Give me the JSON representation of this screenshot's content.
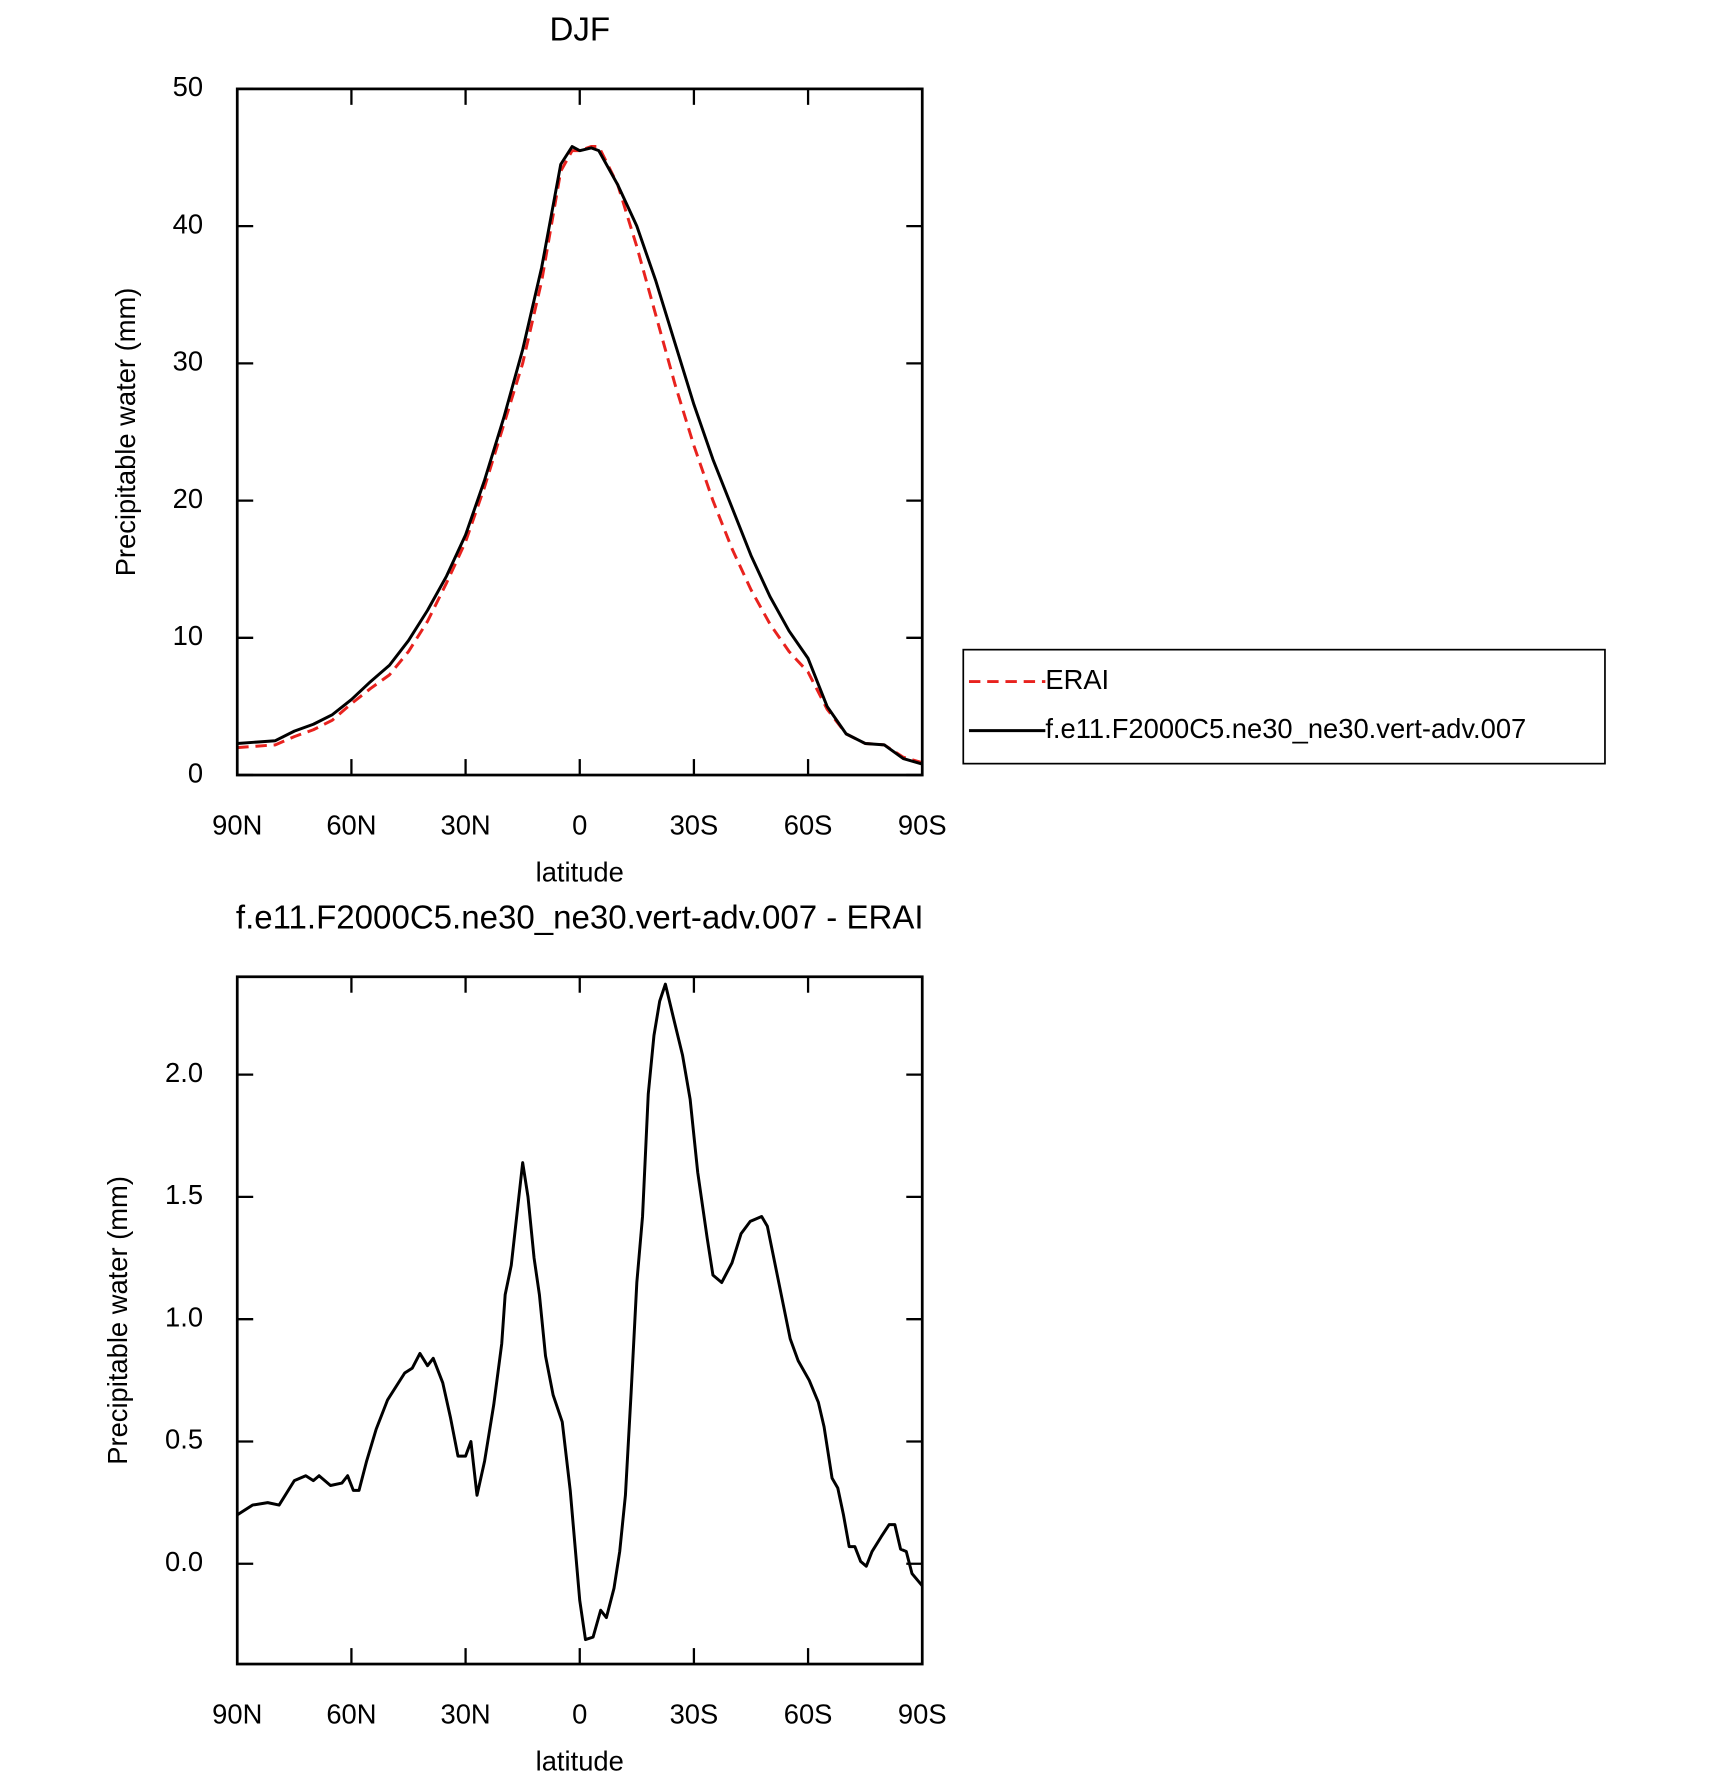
{
  "chart_data": [
    {
      "type": "line",
      "title": "DJF",
      "xlabel": "latitude",
      "ylabel": "Precipitable water (mm)",
      "x": [
        90,
        85,
        80,
        75,
        70,
        65,
        60,
        55,
        50,
        45,
        40,
        35,
        30,
        25,
        20,
        15,
        10,
        5,
        2,
        0,
        -3,
        -5,
        -10,
        -15,
        -20,
        -25,
        -30,
        -35,
        -40,
        -45,
        -50,
        -55,
        -60,
        -65,
        -70,
        -75,
        -80,
        -85,
        -90
      ],
      "series": [
        {
          "name": "ERAI",
          "color": "#e8221e",
          "linestyle": "dashed",
          "values": [
            2.0,
            2.1,
            2.2,
            2.8,
            3.3,
            4.0,
            5.2,
            6.3,
            7.3,
            9.0,
            11.2,
            14.0,
            17,
            21,
            25.5,
            30,
            36,
            44,
            45.5,
            45.5,
            45.8,
            45.8,
            43,
            38.5,
            33.5,
            28.5,
            24,
            20,
            16.5,
            13.5,
            11,
            9,
            7.5,
            4.8,
            3.0,
            2.3,
            2.2,
            1.3,
            0.9
          ]
        },
        {
          "name": "f.e11.F2000C5.ne30_ne30.vert-adv.007",
          "color": "#000000",
          "linestyle": "solid",
          "values": [
            2.3,
            2.4,
            2.5,
            3.2,
            3.7,
            4.4,
            5.5,
            6.8,
            8.0,
            9.8,
            12.0,
            14.5,
            17.5,
            21.5,
            26,
            31,
            37,
            44.5,
            45.8,
            45.5,
            45.7,
            45.5,
            43,
            40,
            36,
            31.5,
            27,
            23,
            19.5,
            16,
            13,
            10.5,
            8.5,
            5,
            3,
            2.3,
            2.2,
            1.2,
            0.8
          ]
        }
      ],
      "xlim": [
        90,
        -90
      ],
      "xticks": [
        {
          "value": 90,
          "label": "90N"
        },
        {
          "value": 60,
          "label": "60N"
        },
        {
          "value": 30,
          "label": "30N"
        },
        0,
        {
          "value": -30,
          "label": "30S"
        },
        {
          "value": -60,
          "label": "60S"
        },
        {
          "value": -90,
          "label": "90S"
        }
      ],
      "ylim": [
        0,
        50
      ],
      "yticks": [
        0,
        10,
        20,
        30,
        40,
        50
      ],
      "legend": "right"
    },
    {
      "type": "line",
      "title": "f.e11.F2000C5.ne30_ne30.vert-adv.007 - ERAI",
      "xlabel": "latitude",
      "ylabel": "Precipitable water (mm)",
      "x": [
        90,
        86,
        82,
        79,
        75,
        72,
        70,
        68.5,
        65.5,
        62.5,
        61,
        59.5,
        58,
        56,
        53.5,
        50.5,
        46,
        44,
        42,
        40,
        38.5,
        36,
        34,
        32,
        30,
        28.6,
        27,
        25,
        22.6,
        20.5,
        19.6,
        18,
        15,
        13.6,
        12,
        10.6,
        9,
        7,
        4.6,
        2.5,
        0,
        -1.5,
        -3.5,
        -5.5,
        -7,
        -9,
        -10.5,
        -12,
        -13.5,
        -15,
        -16.5,
        -18,
        -19.5,
        -21,
        -22.5,
        -24.5,
        -27,
        -29,
        -31,
        -33.5,
        -35,
        -37.3,
        -40,
        -42.4,
        -44.8,
        -47.8,
        -49.3,
        -52.3,
        -55.3,
        -57.4,
        -60.3,
        -62.7,
        -64.2,
        -66.3,
        -67.8,
        -69.3,
        -70.8,
        -72.3,
        -73.8,
        -75.3,
        -76.8,
        -79.2,
        -81.3,
        -82.8,
        -84.3,
        -85.8,
        -87.3,
        -90
      ],
      "series": [
        {
          "color": "#000000",
          "linestyle": "solid",
          "values": [
            0.2,
            0.24,
            0.25,
            0.24,
            0.34,
            0.36,
            0.34,
            0.36,
            0.32,
            0.33,
            0.36,
            0.3,
            0.3,
            0.42,
            0.55,
            0.67,
            0.78,
            0.8,
            0.86,
            0.81,
            0.84,
            0.74,
            0.6,
            0.44,
            0.44,
            0.5,
            0.28,
            0.42,
            0.65,
            0.9,
            1.1,
            1.22,
            1.64,
            1.5,
            1.25,
            1.1,
            0.85,
            0.69,
            0.58,
            0.3,
            -0.15,
            -0.31,
            -0.3,
            -0.19,
            -0.22,
            -0.1,
            0.05,
            0.28,
            0.7,
            1.15,
            1.42,
            1.92,
            2.16,
            2.3,
            2.37,
            2.24,
            2.08,
            1.9,
            1.6,
            1.33,
            1.18,
            1.15,
            1.23,
            1.35,
            1.4,
            1.42,
            1.38,
            1.15,
            0.92,
            0.83,
            0.75,
            0.66,
            0.56,
            0.35,
            0.31,
            0.2,
            0.07,
            0.07,
            0.01,
            -0.01,
            0.05,
            0.11,
            0.16,
            0.16,
            0.06,
            0.05,
            -0.04,
            -0.09
          ]
        }
      ],
      "xlim": [
        90,
        -90
      ],
      "xticks": [
        {
          "value": 90,
          "label": "90N"
        },
        {
          "value": 60,
          "label": "60N"
        },
        {
          "value": 30,
          "label": "30N"
        },
        0,
        {
          "value": -30,
          "label": "30S"
        },
        {
          "value": -60,
          "label": "60S"
        },
        {
          "value": -90,
          "label": "90S"
        }
      ],
      "ylim": [
        -0.41,
        2.4
      ],
      "yticks": [
        {
          "value": 0,
          "label": "0.0"
        },
        0.5,
        {
          "value": 1,
          "label": "1.0"
        },
        1.5,
        {
          "value": 2,
          "label": "2.0"
        }
      ]
    }
  ]
}
